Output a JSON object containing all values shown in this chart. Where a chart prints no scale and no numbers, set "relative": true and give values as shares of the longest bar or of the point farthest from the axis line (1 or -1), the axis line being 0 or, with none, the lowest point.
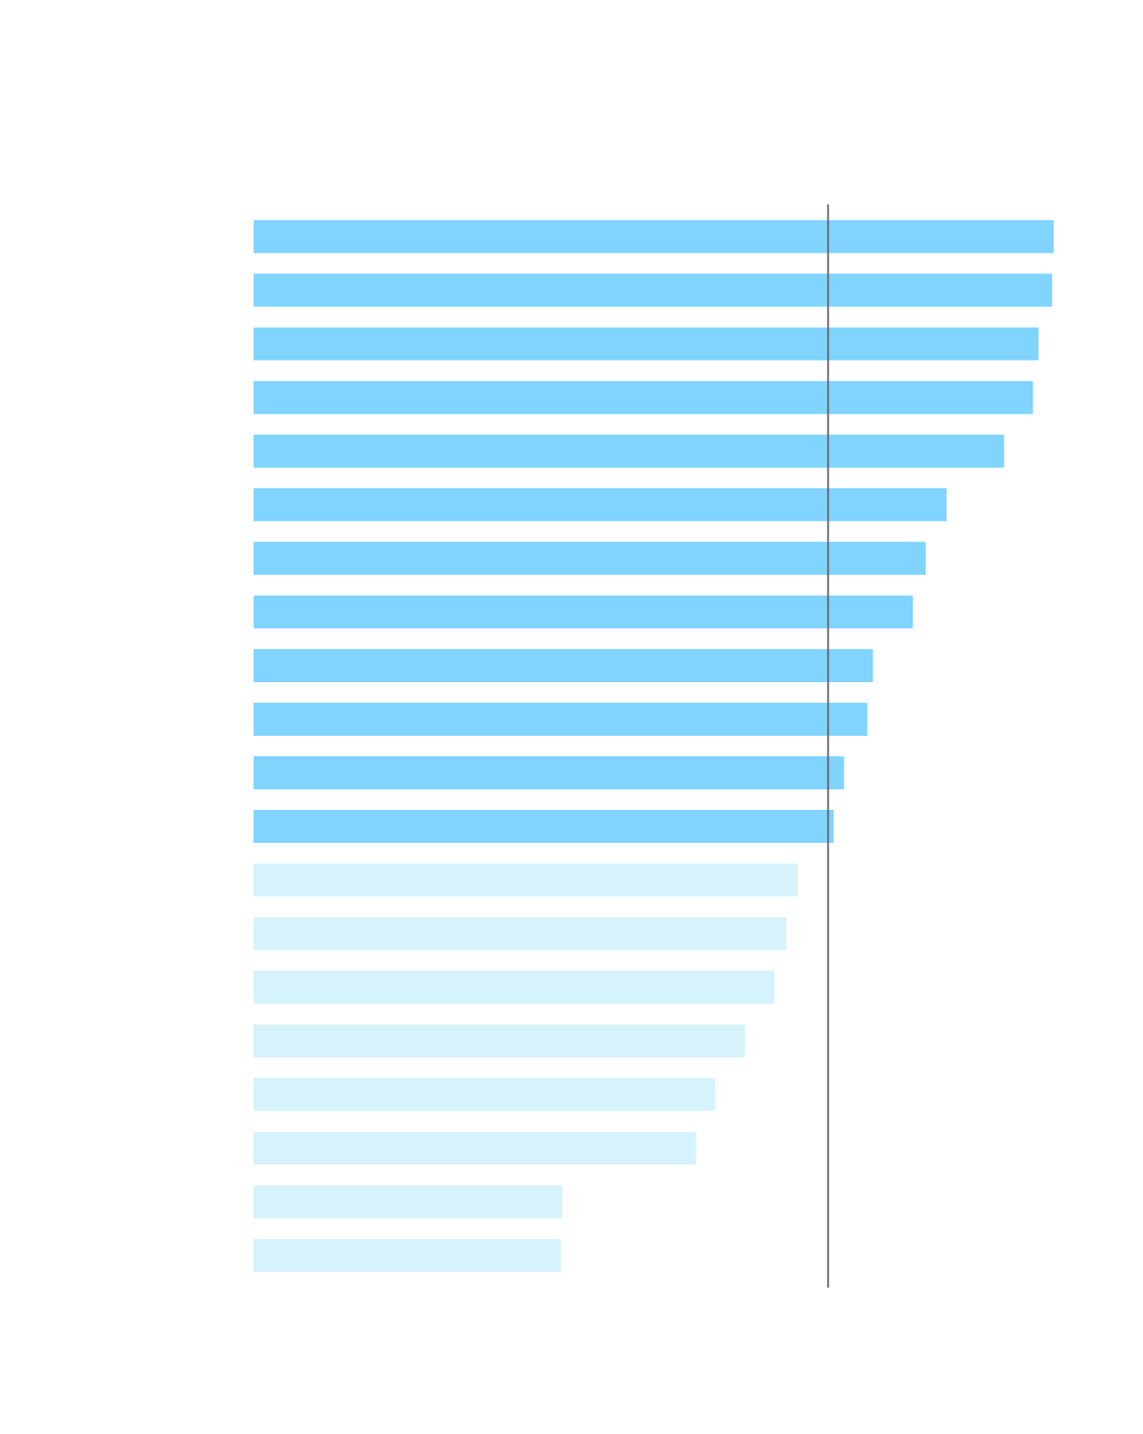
{
  "chart_data": {
    "type": "bar",
    "orientation": "horizontal",
    "relative": true,
    "categories": [
      null,
      null,
      null,
      null,
      null,
      null,
      null,
      null,
      null,
      null,
      null,
      null,
      null,
      null,
      null,
      null,
      null,
      null,
      null,
      null
    ],
    "values": [
      1,
      0.998,
      0.981,
      0.974,
      0.938,
      0.866,
      0.84,
      0.824,
      0.774,
      0.767,
      0.738,
      0.725,
      0.68,
      0.666,
      0.651,
      0.614,
      0.577,
      0.553,
      0.386,
      0.384
    ],
    "colors": [
      "#80d4fe",
      "#80d4fe",
      "#80d4fe",
      "#80d4fe",
      "#80d4fe",
      "#80d4fe",
      "#80d4fe",
      "#80d4fe",
      "#80d4fe",
      "#80d4fe",
      "#80d4fe",
      "#80d4fe",
      "#d6f2fa",
      "#d6f2fa",
      "#d6f2fa",
      "#d6f2fa",
      "#d6f2fa",
      "#d6f2fa",
      "#d6f2fa",
      "#d6f2fa"
    ],
    "ref_lines": [
      {
        "axis": "x",
        "value": 0.718,
        "color": "#666666"
      }
    ]
  }
}
